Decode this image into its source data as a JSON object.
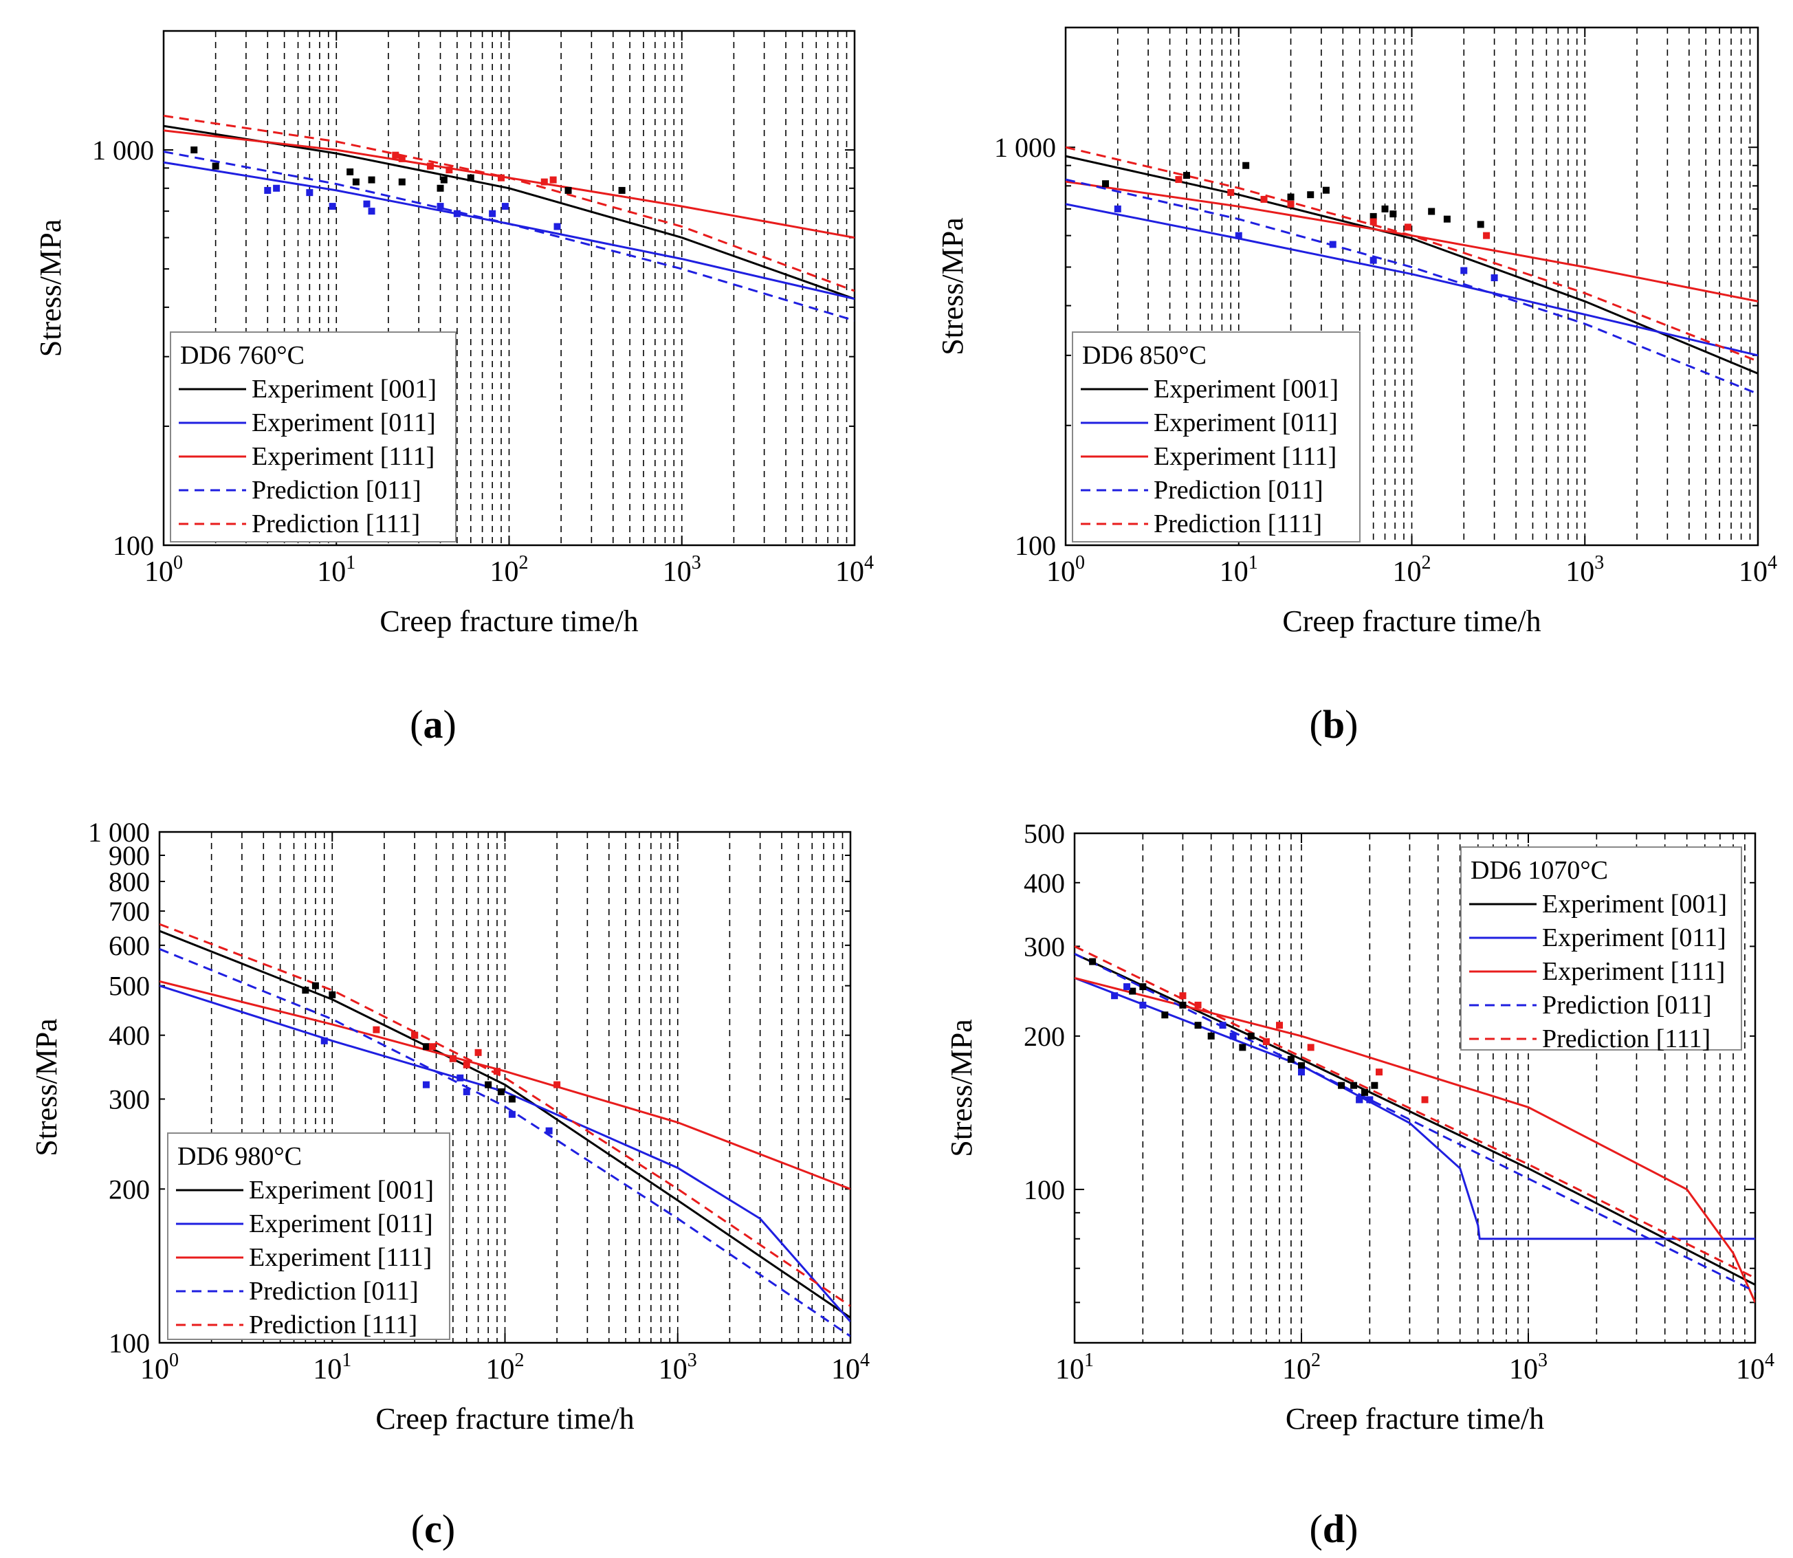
{
  "figure": {
    "captions": [
      "a",
      "b",
      "c",
      "d"
    ]
  },
  "colors": {
    "axis": "#000000",
    "grid": "#000000",
    "exp_001": "#000000",
    "exp_011": "#1f1fe0",
    "exp_111": "#e81c1c",
    "pred_011": "#1f1fe0",
    "pred_111": "#e81c1c",
    "background": "#ffffff"
  },
  "chart_data": [
    {
      "type": "line",
      "panel": "a",
      "title": "DD6 760°C",
      "xlabel": "Creep fracture time/h",
      "ylabel": "Stress/MPa",
      "xscale": "log",
      "yscale": "log",
      "xlim": [
        1,
        10000
      ],
      "ylim": [
        100,
        2000
      ],
      "legend_position": "bottom-left",
      "x_ticks": [
        {
          "value": 1,
          "base": "10",
          "exp": "0"
        },
        {
          "value": 10,
          "base": "10",
          "exp": "1"
        },
        {
          "value": 100,
          "base": "10",
          "exp": "2"
        },
        {
          "value": 1000,
          "base": "10",
          "exp": "3"
        },
        {
          "value": 10000,
          "base": "10",
          "exp": "4"
        }
      ],
      "y_ticks": [
        {
          "value": 100,
          "label": "100"
        },
        {
          "value": 1000,
          "label": "1 000"
        }
      ],
      "series": [
        {
          "name": "Experiment [001]",
          "color": "#000000",
          "dash": false,
          "x": [
            1,
            10,
            100,
            1000,
            10000
          ],
          "y": [
            1150,
            980,
            800,
            600,
            420
          ]
        },
        {
          "name": "Experiment [011]",
          "color": "#1f1fe0",
          "dash": false,
          "x": [
            1,
            10,
            100,
            1000,
            10000
          ],
          "y": [
            930,
            790,
            650,
            530,
            420
          ]
        },
        {
          "name": "Experiment [111]",
          "color": "#e81c1c",
          "dash": false,
          "x": [
            1,
            10,
            100,
            1000,
            10000
          ],
          "y": [
            1120,
            1000,
            850,
            720,
            600
          ]
        },
        {
          "name": "Prediction [011]",
          "color": "#1f1fe0",
          "dash": true,
          "x": [
            1,
            10,
            100,
            1000,
            10000
          ],
          "y": [
            990,
            820,
            650,
            500,
            370
          ]
        },
        {
          "name": "Prediction [111]",
          "color": "#e81c1c",
          "dash": true,
          "x": [
            1,
            10,
            100,
            1000,
            10000
          ],
          "y": [
            1220,
            1050,
            850,
            640,
            440
          ]
        }
      ],
      "points": [
        {
          "series": "Experiment [001]",
          "x": [
            1.5,
            2,
            12,
            13,
            16,
            24,
            40,
            42,
            60,
            220,
            450
          ],
          "y": [
            1000,
            910,
            880,
            830,
            840,
            830,
            800,
            840,
            850,
            790,
            790
          ]
        },
        {
          "series": "Experiment [011]",
          "x": [
            4,
            4.5,
            7,
            9.5,
            15,
            16,
            40,
            50,
            80,
            95,
            190
          ],
          "y": [
            790,
            800,
            780,
            720,
            730,
            700,
            720,
            690,
            690,
            720,
            640
          ]
        },
        {
          "series": "Experiment [111]",
          "x": [
            22,
            24,
            35,
            45,
            90,
            160,
            180
          ],
          "y": [
            970,
            950,
            910,
            890,
            850,
            830,
            840
          ]
        }
      ]
    },
    {
      "type": "line",
      "panel": "b",
      "title": "DD6 850°C",
      "xlabel": "Creep fracture time/h",
      "ylabel": "Stress/MPa",
      "xscale": "log",
      "yscale": "log",
      "xlim": [
        1,
        10000
      ],
      "ylim": [
        100,
        2000
      ],
      "legend_position": "bottom-left",
      "x_ticks": [
        {
          "value": 1,
          "base": "10",
          "exp": "0"
        },
        {
          "value": 10,
          "base": "10",
          "exp": "1"
        },
        {
          "value": 100,
          "base": "10",
          "exp": "2"
        },
        {
          "value": 1000,
          "base": "10",
          "exp": "3"
        },
        {
          "value": 10000,
          "base": "10",
          "exp": "4"
        }
      ],
      "y_ticks": [
        {
          "value": 100,
          "label": "100"
        },
        {
          "value": 1000,
          "label": "1 000"
        }
      ],
      "series": [
        {
          "name": "Experiment [001]",
          "color": "#000000",
          "dash": false,
          "x": [
            1,
            10,
            100,
            1000,
            10000
          ],
          "y": [
            950,
            760,
            590,
            410,
            270
          ]
        },
        {
          "name": "Experiment [011]",
          "color": "#1f1fe0",
          "dash": false,
          "x": [
            1,
            10,
            100,
            1000,
            10000
          ],
          "y": [
            720,
            590,
            480,
            380,
            300
          ]
        },
        {
          "name": "Experiment [111]",
          "color": "#e81c1c",
          "dash": false,
          "x": [
            1,
            10,
            100,
            1000,
            10000
          ],
          "y": [
            820,
            710,
            600,
            500,
            410
          ]
        },
        {
          "name": "Prediction [011]",
          "color": "#1f1fe0",
          "dash": true,
          "x": [
            1,
            10,
            100,
            1000,
            10000
          ],
          "y": [
            830,
            660,
            500,
            360,
            240
          ]
        },
        {
          "name": "Prediction [111]",
          "color": "#e81c1c",
          "dash": true,
          "x": [
            1,
            10,
            100,
            1000,
            10000
          ],
          "y": [
            1000,
            790,
            600,
            430,
            290
          ]
        }
      ],
      "points": [
        {
          "series": "Experiment [001]",
          "x": [
            1.7,
            5,
            11,
            20,
            26,
            32,
            60,
            70,
            78,
            130,
            160,
            250
          ],
          "y": [
            810,
            850,
            900,
            750,
            760,
            780,
            670,
            700,
            680,
            690,
            660,
            640
          ]
        },
        {
          "series": "Experiment [011]",
          "x": [
            2,
            10,
            35,
            60,
            200,
            300
          ],
          "y": [
            700,
            600,
            570,
            520,
            490,
            470
          ]
        },
        {
          "name": "Experiment [111]",
          "series": "Experiment [111]",
          "x": [
            4.5,
            9,
            14,
            20,
            60,
            95,
            270
          ],
          "y": [
            830,
            770,
            740,
            720,
            650,
            630,
            600
          ]
        }
      ]
    },
    {
      "type": "line",
      "panel": "c",
      "title": "DD6 980°C",
      "xlabel": "Creep fracture time/h",
      "ylabel": "Stress/MPa",
      "xscale": "log",
      "yscale": "log",
      "xlim": [
        1,
        10000
      ],
      "ylim": [
        100,
        1000
      ],
      "legend_position": "bottom-left",
      "x_ticks": [
        {
          "value": 1,
          "base": "10",
          "exp": "0"
        },
        {
          "value": 10,
          "base": "10",
          "exp": "1"
        },
        {
          "value": 100,
          "base": "10",
          "exp": "2"
        },
        {
          "value": 1000,
          "base": "10",
          "exp": "3"
        },
        {
          "value": 10000,
          "base": "10",
          "exp": "4"
        }
      ],
      "y_ticks": [
        {
          "value": 100,
          "label": "100"
        },
        {
          "value": 200,
          "label": "200"
        },
        {
          "value": 300,
          "label": "300"
        },
        {
          "value": 400,
          "label": "400"
        },
        {
          "value": 500,
          "label": "500"
        },
        {
          "value": 600,
          "label": "600"
        },
        {
          "value": 700,
          "label": "700"
        },
        {
          "value": 800,
          "label": "800"
        },
        {
          "value": 900,
          "label": "900"
        },
        {
          "value": 1000,
          "label": "1 000"
        }
      ],
      "series": [
        {
          "name": "Experiment [001]",
          "color": "#000000",
          "dash": false,
          "x": [
            1,
            10,
            100,
            1000,
            10000
          ],
          "y": [
            640,
            470,
            320,
            190,
            112
          ]
        },
        {
          "name": "Experiment [011]",
          "color": "#1f1fe0",
          "dash": false,
          "x": [
            1,
            10,
            100,
            1000,
            3000,
            10000
          ],
          "y": [
            500,
            390,
            310,
            220,
            175,
            110
          ]
        },
        {
          "name": "Experiment [111]",
          "color": "#e81c1c",
          "dash": false,
          "x": [
            1,
            10,
            100,
            1000,
            10000
          ],
          "y": [
            510,
            420,
            340,
            270,
            200
          ]
        },
        {
          "name": "Prediction [011]",
          "color": "#1f1fe0",
          "dash": true,
          "x": [
            1,
            10,
            100,
            1000,
            10000
          ],
          "y": [
            590,
            430,
            290,
            175,
            103
          ]
        },
        {
          "name": "Prediction [111]",
          "color": "#e81c1c",
          "dash": true,
          "x": [
            1,
            10,
            100,
            1000,
            10000
          ],
          "y": [
            660,
            490,
            330,
            200,
            118
          ]
        }
      ],
      "points": [
        {
          "series": "Experiment [001]",
          "x": [
            7,
            8,
            10,
            30,
            35,
            50,
            80,
            95,
            110
          ],
          "y": [
            490,
            500,
            480,
            400,
            380,
            360,
            320,
            310,
            300
          ]
        },
        {
          "series": "Experiment [011]",
          "x": [
            9,
            35,
            55,
            60,
            110,
            180
          ],
          "y": [
            390,
            320,
            330,
            310,
            280,
            260
          ]
        },
        {
          "series": "Experiment [111]",
          "x": [
            18,
            30,
            38,
            50,
            60,
            70,
            90,
            200
          ],
          "y": [
            410,
            400,
            380,
            360,
            350,
            370,
            340,
            320
          ]
        }
      ]
    },
    {
      "type": "line",
      "panel": "d",
      "title": "DD6 1070°C",
      "xlabel": "Creep fracture time/h",
      "ylabel": "Stress/MPa",
      "xscale": "log",
      "yscale": "log",
      "xlim": [
        10,
        10000
      ],
      "ylim": [
        50,
        500
      ],
      "legend_position": "top-right",
      "x_ticks": [
        {
          "value": 10,
          "base": "10",
          "exp": "1"
        },
        {
          "value": 100,
          "base": "10",
          "exp": "2"
        },
        {
          "value": 1000,
          "base": "10",
          "exp": "3"
        },
        {
          "value": 10000,
          "base": "10",
          "exp": "4"
        }
      ],
      "y_ticks": [
        {
          "value": 100,
          "label": "100"
        },
        {
          "value": 200,
          "label": "200"
        },
        {
          "value": 300,
          "label": "300"
        },
        {
          "value": 400,
          "label": "400"
        },
        {
          "value": 500,
          "label": "500"
        }
      ],
      "series": [
        {
          "name": "Experiment [001]",
          "color": "#000000",
          "dash": false,
          "x": [
            10,
            100,
            1000,
            10000
          ],
          "y": [
            290,
            180,
            110,
            65
          ]
        },
        {
          "name": "Experiment [011]",
          "color": "#1f1fe0",
          "dash": false,
          "x": [
            10,
            100,
            300,
            500,
            600,
            610,
            10000
          ],
          "y": [
            260,
            175,
            135,
            110,
            85,
            80,
            80
          ]
        },
        {
          "name": "Experiment [111]",
          "color": "#e81c1c",
          "dash": false,
          "x": [
            10,
            100,
            1000,
            5000,
            8000,
            10000
          ],
          "y": [
            260,
            200,
            145,
            100,
            75,
            60
          ]
        },
        {
          "name": "Prediction [011]",
          "color": "#1f1fe0",
          "dash": true,
          "x": [
            10,
            100,
            1000,
            10000
          ],
          "y": [
            290,
            175,
            105,
            63
          ]
        },
        {
          "name": "Prediction [111]",
          "color": "#e81c1c",
          "dash": true,
          "x": [
            10,
            100,
            1000,
            10000
          ],
          "y": [
            300,
            182,
            112,
            67
          ]
        }
      ],
      "points": [
        {
          "series": "Experiment [001]",
          "x": [
            12,
            18,
            20,
            25,
            30,
            35,
            40,
            55,
            60,
            90,
            100,
            150,
            170,
            180,
            190,
            210
          ],
          "y": [
            280,
            245,
            250,
            220,
            230,
            210,
            200,
            190,
            200,
            180,
            175,
            160,
            160,
            150,
            155,
            160
          ]
        },
        {
          "series": "Experiment [011]",
          "x": [
            15,
            17,
            20,
            45,
            50,
            100,
            180,
            200
          ],
          "y": [
            240,
            250,
            230,
            210,
            200,
            170,
            150,
            150
          ]
        },
        {
          "series": "Experiment [111]",
          "x": [
            30,
            35,
            70,
            80,
            110,
            220,
            350
          ],
          "y": [
            240,
            230,
            195,
            210,
            190,
            170,
            150
          ]
        }
      ]
    }
  ]
}
